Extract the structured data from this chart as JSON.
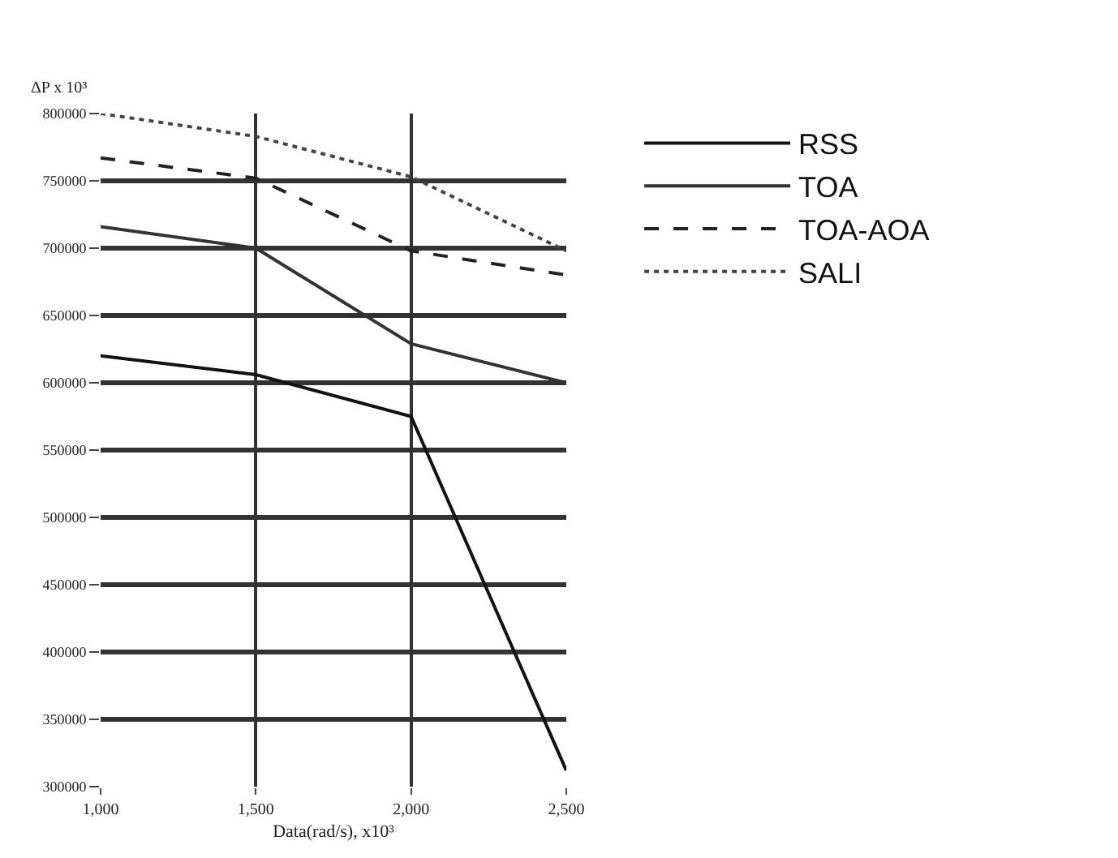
{
  "chart_data": {
    "type": "line",
    "xlabel": "Data(rad/s), x10³",
    "ylabel": "ΔP x 10³",
    "x": [
      1000,
      1500,
      2000,
      2500
    ],
    "series": [
      {
        "name": "RSS",
        "color": "#111111",
        "line_style": "solid",
        "values": [
          620000,
          606000,
          575000,
          312000
        ]
      },
      {
        "name": "TOA",
        "color": "#333333",
        "line_style": "solid",
        "values": [
          716000,
          700000,
          629000,
          600000
        ]
      },
      {
        "name": "TOA-AOA",
        "color": "#222222",
        "line_style": "dashed",
        "values": [
          767000,
          752000,
          698000,
          680000
        ]
      },
      {
        "name": "SALI",
        "color": "#444444",
        "line_style": "dotted",
        "values": [
          800000,
          783000,
          753000,
          698000
        ]
      }
    ],
    "xlim": [
      1000,
      2500
    ],
    "xticks": [
      {
        "value": 1000,
        "label": "1,000"
      },
      {
        "value": 1500,
        "label": "1,500"
      },
      {
        "value": 2000,
        "label": "2,000"
      },
      {
        "value": 2500,
        "label": "2,500"
      }
    ],
    "ylim": [
      300000,
      800000
    ],
    "yticks": [
      300000,
      350000,
      400000,
      450000,
      500000,
      550000,
      600000,
      650000,
      700000,
      750000,
      800000
    ],
    "grid": true,
    "legend": "right",
    "marker": "none"
  }
}
